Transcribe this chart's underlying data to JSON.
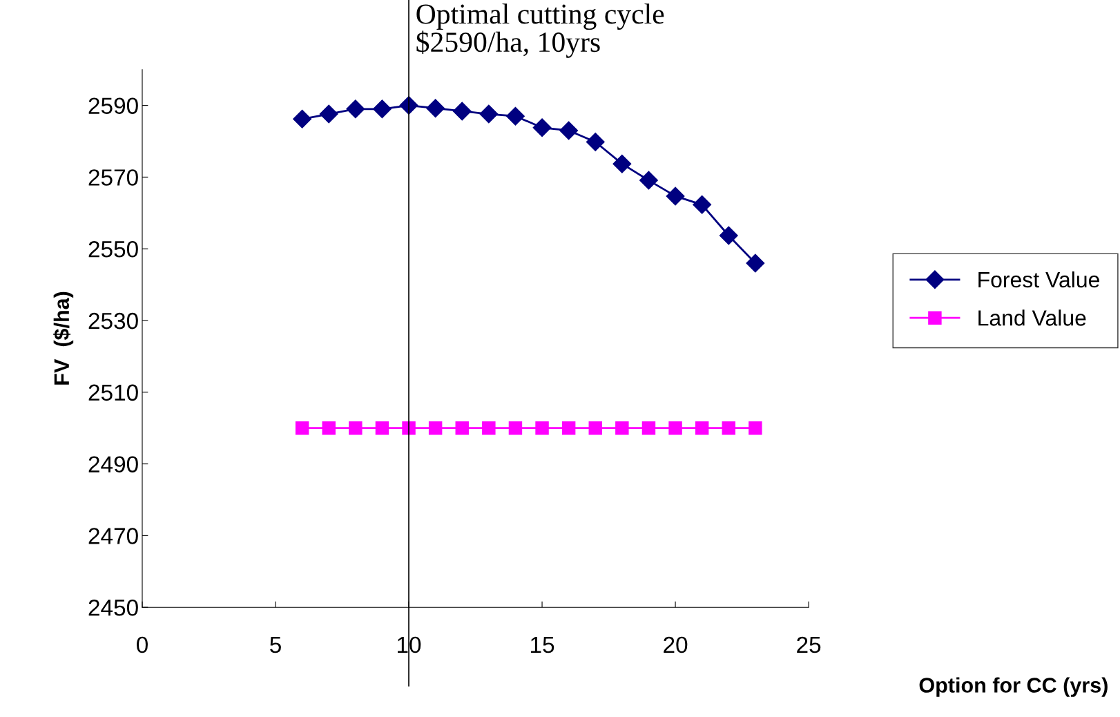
{
  "chart_data": {
    "type": "line",
    "xlabel": "Option for CC (yrs)",
    "ylabel": "FV  ($/ha)",
    "x": [
      6,
      7,
      8,
      9,
      10,
      11,
      12,
      13,
      14,
      15,
      16,
      17,
      18,
      19,
      20,
      21,
      22,
      23
    ],
    "series": [
      {
        "name": "Forest Value",
        "color": "#000080",
        "marker": "diamond",
        "values": [
          2586.2,
          2587.6,
          2589,
          2589,
          2590,
          2589.2,
          2588.4,
          2587.6,
          2587,
          2583.8,
          2583,
          2579.8,
          2573.7,
          2569.1,
          2564.7,
          2562.3,
          2553.7,
          2546
        ]
      },
      {
        "name": "Land Value",
        "color": "#ff00ff",
        "marker": "square",
        "values": [
          2500,
          2500,
          2500,
          2500,
          2500,
          2500,
          2500,
          2500,
          2500,
          2500,
          2500,
          2500,
          2500,
          2500,
          2500,
          2500,
          2500,
          2500
        ]
      }
    ],
    "xlim": [
      0,
      25
    ],
    "xticks": [
      0,
      5,
      10,
      15,
      20,
      25
    ],
    "ylim": [
      2450,
      2600
    ],
    "yticks": [
      2450,
      2470,
      2490,
      2510,
      2530,
      2550,
      2570,
      2590
    ],
    "ref_lines": [
      {
        "axis": "x",
        "value": 10,
        "label": "Optimal cutting cycle\n$2590/ha, 10yrs",
        "color": "#000000"
      }
    ],
    "grid": false,
    "legend": "right",
    "line_style": "solid"
  }
}
